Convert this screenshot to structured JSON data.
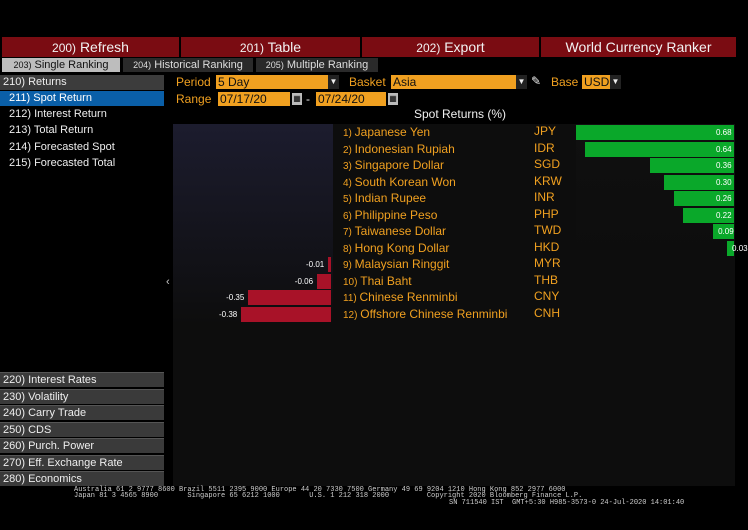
{
  "toolbar": {
    "refresh": {
      "num": "200)",
      "label": "Refresh"
    },
    "table": {
      "num": "201)",
      "label": "Table"
    },
    "export": {
      "num": "202)",
      "label": "Export"
    },
    "title": "World Currency Ranker"
  },
  "tabs": [
    {
      "num": "203)",
      "label": "Single Ranking"
    },
    {
      "num": "204)",
      "label": "Historical Ranking"
    },
    {
      "num": "205)",
      "label": "Multiple Ranking"
    }
  ],
  "sidebar": {
    "returns": "210) Returns",
    "sub": [
      "211) Spot Return",
      "212) Interest Return",
      "213) Total Return",
      "214) Forecasted Spot",
      "215) Forecasted Total"
    ],
    "categories": [
      "220) Interest Rates",
      "230) Volatility",
      "240) Carry Trade",
      "250) CDS",
      "260) Purch. Power",
      "270) Eff. Exchange Rate",
      "280) Economics"
    ]
  },
  "controls": {
    "period_label": "Period",
    "period_value": "5 Day",
    "basket_label": "Basket",
    "basket_value": "Asia",
    "base_label": "Base",
    "base_value": "USD",
    "range_label": "Range",
    "range_from": "07/17/20",
    "range_sep": "-",
    "range_to": "07/24/20"
  },
  "chart_title": "Spot Returns (%)",
  "chart_data": {
    "type": "bar",
    "title": "Spot Returns (%)",
    "categories": [
      "Japanese Yen",
      "Indonesian Rupiah",
      "Singapore Dollar",
      "South Korean Won",
      "Indian Rupee",
      "Philippine Peso",
      "Taiwanese Dollar",
      "Hong Kong Dollar",
      "Malaysian Ringgit",
      "Thai Baht",
      "Chinese Renminbi",
      "Offshore Chinese Renminbi"
    ],
    "ranks": [
      "1)",
      "2)",
      "3)",
      "4)",
      "5)",
      "6)",
      "7)",
      "8)",
      "9)",
      "10)",
      "11)",
      "12)"
    ],
    "codes": [
      "JPY",
      "IDR",
      "SGD",
      "KRW",
      "INR",
      "PHP",
      "TWD",
      "HKD",
      "MYR",
      "THB",
      "CNY",
      "CNH"
    ],
    "values": [
      0.68,
      0.64,
      0.36,
      0.3,
      0.26,
      0.22,
      0.09,
      0.03,
      -0.01,
      -0.06,
      -0.35,
      -0.38
    ],
    "labels": [
      "0.68",
      "0.64",
      "0.36",
      "0.30",
      "0.26",
      "0.22",
      "0.09",
      "0.03",
      "-0.01",
      "-0.06",
      "-0.35",
      "-0.38"
    ],
    "colors": {
      "positive": "#0aa82a",
      "negative": "#a81228"
    }
  },
  "footer": {
    "line1": "Australia 61 2 9777 8600 Brazil 5511 2395 9000 Europe 44 20 7330 7500 Germany 49 69 9204 1210 Hong Kong 852 2977 6000",
    "line2": "Japan 81 3 4565 8900       Singapore 65 6212 1000       U.S. 1 212 318 2000         Copyright 2020 Bloomberg Finance L.P.",
    "line3": "SN 711540 IST  GMT+5:30 H985-3573-0 24-Jul-2020 14:01:40"
  }
}
